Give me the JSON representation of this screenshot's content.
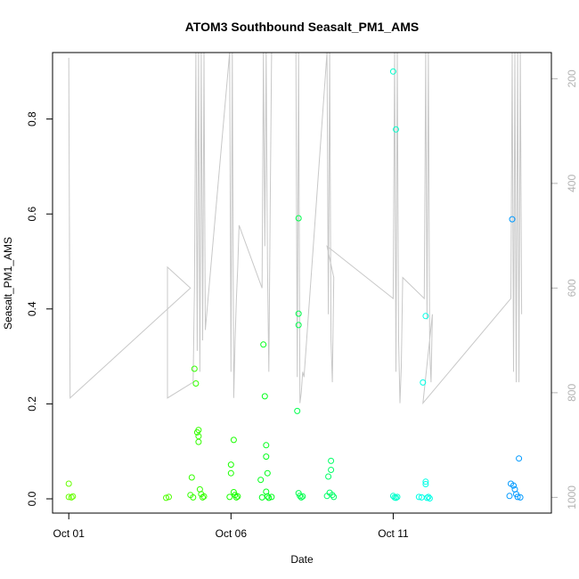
{
  "chart_data": {
    "type": "scatter",
    "title": "ATOM3 Southbound Seasalt_PM1_AMS",
    "xlabel": "Date",
    "ylabel": "Seasalt_PM1_AMS",
    "xlim": [
      "2017-09-30T12:00",
      "2017-10-15T21:00"
    ],
    "ylim": [
      -0.03,
      0.94
    ],
    "x_ticks": [
      {
        "date": "2017-10-01T00:00",
        "label": "Oct 01"
      },
      {
        "date": "2017-10-06T00:00",
        "label": "Oct 06"
      },
      {
        "date": "2017-10-11T00:00",
        "label": "Oct 11"
      }
    ],
    "y_ticks": [
      {
        "value": 0.0,
        "label": "0.0"
      },
      {
        "value": 0.2,
        "label": "0.2"
      },
      {
        "value": 0.4,
        "label": "0.4"
      },
      {
        "value": 0.6,
        "label": "0.6"
      },
      {
        "value": 0.8,
        "label": "0.8"
      }
    ],
    "secondary_axis": {
      "side": "right",
      "color": "#b3b3b3",
      "reversed": true,
      "ylim": [
        1030,
        150
      ],
      "ticks": [
        {
          "value": 200,
          "label": "200"
        },
        {
          "value": 400,
          "label": "400"
        },
        {
          "value": 600,
          "label": "600"
        },
        {
          "value": 800,
          "label": "800"
        },
        {
          "value": 1000,
          "label": "1000"
        }
      ]
    },
    "points": [
      {
        "x": "2017-10-01T00:00",
        "y": 0.032,
        "color": "#66ff00"
      },
      {
        "x": "2017-10-01T00:00",
        "y": 0.004,
        "color": "#66ff00"
      },
      {
        "x": "2017-10-01T02:00",
        "y": 0.003,
        "color": "#66ff00"
      },
      {
        "x": "2017-10-01T03:00",
        "y": 0.005,
        "color": "#66ff00"
      },
      {
        "x": "2017-10-04T00:00",
        "y": 0.002,
        "color": "#4dff00"
      },
      {
        "x": "2017-10-04T02:00",
        "y": 0.004,
        "color": "#4dff00"
      },
      {
        "x": "2017-10-04T18:00",
        "y": 0.008,
        "color": "#33ff00"
      },
      {
        "x": "2017-10-04T19:00",
        "y": 0.045,
        "color": "#33ff00"
      },
      {
        "x": "2017-10-04T20:00",
        "y": 0.003,
        "color": "#33ff00"
      },
      {
        "x": "2017-10-04T21:00",
        "y": 0.274,
        "color": "#33ff00"
      },
      {
        "x": "2017-10-04T22:00",
        "y": 0.243,
        "color": "#33ff00"
      },
      {
        "x": "2017-10-04T23:00",
        "y": 0.14,
        "color": "#33ff00"
      },
      {
        "x": "2017-10-05T00:00",
        "y": 0.145,
        "color": "#33ff00"
      },
      {
        "x": "2017-10-05T00:00",
        "y": 0.132,
        "color": "#33ff00"
      },
      {
        "x": "2017-10-05T00:00",
        "y": 0.12,
        "color": "#33ff00"
      },
      {
        "x": "2017-10-05T01:00",
        "y": 0.02,
        "color": "#33ff00"
      },
      {
        "x": "2017-10-05T02:00",
        "y": 0.01,
        "color": "#33ff00"
      },
      {
        "x": "2017-10-05T03:00",
        "y": 0.003,
        "color": "#33ff00"
      },
      {
        "x": "2017-10-05T04:00",
        "y": 0.005,
        "color": "#33ff00"
      },
      {
        "x": "2017-10-05T23:00",
        "y": 0.004,
        "color": "#1aff00"
      },
      {
        "x": "2017-10-06T00:00",
        "y": 0.072,
        "color": "#1aff00"
      },
      {
        "x": "2017-10-06T00:00",
        "y": 0.054,
        "color": "#1aff00"
      },
      {
        "x": "2017-10-06T02:00",
        "y": 0.124,
        "color": "#1aff00"
      },
      {
        "x": "2017-10-06T02:00",
        "y": 0.014,
        "color": "#1aff00"
      },
      {
        "x": "2017-10-06T03:00",
        "y": 0.008,
        "color": "#1aff00"
      },
      {
        "x": "2017-10-06T04:00",
        "y": 0.003,
        "color": "#1aff00"
      },
      {
        "x": "2017-10-06T05:00",
        "y": 0.005,
        "color": "#1aff00"
      },
      {
        "x": "2017-10-06T23:00",
        "y": 0.003,
        "color": "#00ff1a"
      },
      {
        "x": "2017-10-07T00:00",
        "y": 0.325,
        "color": "#00ff1a"
      },
      {
        "x": "2017-10-07T01:00",
        "y": 0.216,
        "color": "#00ff1a"
      },
      {
        "x": "2017-10-07T02:00",
        "y": 0.113,
        "color": "#00ff1a"
      },
      {
        "x": "2017-10-07T02:00",
        "y": 0.089,
        "color": "#00ff1a"
      },
      {
        "x": "2017-10-07T03:00",
        "y": 0.054,
        "color": "#00ff1a"
      },
      {
        "x": "2017-10-06T22:00",
        "y": 0.04,
        "color": "#00ff1a"
      },
      {
        "x": "2017-10-07T02:00",
        "y": 0.015,
        "color": "#00ff1a"
      },
      {
        "x": "2017-10-07T03:00",
        "y": 0.005,
        "color": "#00ff1a"
      },
      {
        "x": "2017-10-07T04:00",
        "y": 0.002,
        "color": "#00ff1a"
      },
      {
        "x": "2017-10-07T06:00",
        "y": 0.004,
        "color": "#00ff1a"
      },
      {
        "x": "2017-10-08T01:00",
        "y": 0.185,
        "color": "#00ff4d"
      },
      {
        "x": "2017-10-08T02:00",
        "y": 0.591,
        "color": "#00ff4d"
      },
      {
        "x": "2017-10-08T02:00",
        "y": 0.39,
        "color": "#00ff4d"
      },
      {
        "x": "2017-10-08T02:00",
        "y": 0.366,
        "color": "#00ff4d"
      },
      {
        "x": "2017-10-08T02:00",
        "y": 0.012,
        "color": "#00ff4d"
      },
      {
        "x": "2017-10-08T03:00",
        "y": 0.006,
        "color": "#00ff4d"
      },
      {
        "x": "2017-10-08T04:00",
        "y": 0.003,
        "color": "#00ff4d"
      },
      {
        "x": "2017-10-08T05:00",
        "y": 0.005,
        "color": "#00ff4d"
      },
      {
        "x": "2017-10-08T23:00",
        "y": 0.006,
        "color": "#00ff66"
      },
      {
        "x": "2017-10-09T00:00",
        "y": 0.047,
        "color": "#00ff66"
      },
      {
        "x": "2017-10-09T01:00",
        "y": 0.013,
        "color": "#00ff66"
      },
      {
        "x": "2017-10-09T02:00",
        "y": 0.08,
        "color": "#00ff66"
      },
      {
        "x": "2017-10-09T02:00",
        "y": 0.061,
        "color": "#00ff66"
      },
      {
        "x": "2017-10-09T03:00",
        "y": 0.008,
        "color": "#00ff66"
      },
      {
        "x": "2017-10-09T04:00",
        "y": 0.004,
        "color": "#00ff66"
      },
      {
        "x": "2017-10-11T00:00",
        "y": 0.9,
        "color": "#00ffcc"
      },
      {
        "x": "2017-10-11T02:00",
        "y": 0.778,
        "color": "#00ffcc"
      },
      {
        "x": "2017-10-11T00:00",
        "y": 0.006,
        "color": "#00ffcc"
      },
      {
        "x": "2017-10-11T01:00",
        "y": 0.003,
        "color": "#00ffcc"
      },
      {
        "x": "2017-10-11T02:00",
        "y": 0.002,
        "color": "#00ffcc"
      },
      {
        "x": "2017-10-11T03:00",
        "y": 0.004,
        "color": "#00ffcc"
      },
      {
        "x": "2017-10-11T19:00",
        "y": 0.004,
        "color": "#00ffe6"
      },
      {
        "x": "2017-10-11T21:00",
        "y": 0.003,
        "color": "#00ffe6"
      },
      {
        "x": "2017-10-11T22:00",
        "y": 0.245,
        "color": "#00ffe6"
      },
      {
        "x": "2017-10-12T00:00",
        "y": 0.385,
        "color": "#00ffe6"
      },
      {
        "x": "2017-10-12T00:00",
        "y": 0.036,
        "color": "#00ffe6"
      },
      {
        "x": "2017-10-12T00:00",
        "y": 0.031,
        "color": "#00ffe6"
      },
      {
        "x": "2017-10-12T01:00",
        "y": 0.002,
        "color": "#00ffe6"
      },
      {
        "x": "2017-10-12T02:00",
        "y": 0.004,
        "color": "#00ffe6"
      },
      {
        "x": "2017-10-12T03:00",
        "y": 0.001,
        "color": "#00ffe6"
      },
      {
        "x": "2017-10-14T14:00",
        "y": 0.006,
        "color": "#0099ff"
      },
      {
        "x": "2017-10-14T15:00",
        "y": 0.032,
        "color": "#0099ff"
      },
      {
        "x": "2017-10-14T16:00",
        "y": 0.589,
        "color": "#0099ff"
      },
      {
        "x": "2017-10-14T17:00",
        "y": 0.028,
        "color": "#0099ff"
      },
      {
        "x": "2017-10-14T18:00",
        "y": 0.02,
        "color": "#0099ff"
      },
      {
        "x": "2017-10-14T19:00",
        "y": 0.01,
        "color": "#0099ff"
      },
      {
        "x": "2017-10-14T20:00",
        "y": 0.004,
        "color": "#0099ff"
      },
      {
        "x": "2017-10-14T21:00",
        "y": 0.085,
        "color": "#0099ff"
      },
      {
        "x": "2017-10-14T22:00",
        "y": 0.003,
        "color": "#0099ff"
      }
    ],
    "secondary_line": {
      "color": "#c8c8c8",
      "points": [
        [
          "2017-10-01T00:00",
          160
        ],
        [
          "2017-10-01T00:00",
          160
        ],
        [
          "2017-10-01T01:00",
          810
        ],
        [
          "2017-10-04T18:00",
          600
        ],
        [
          "2017-10-04T18:00",
          600
        ],
        [
          "2017-10-04T01:00",
          560
        ],
        [
          "2017-10-04T01:00",
          810
        ],
        [
          "2017-10-04T20:00",
          780
        ],
        [
          "2017-10-04T21:00",
          600
        ],
        [
          "2017-10-04T22:00",
          150
        ],
        [
          "2017-10-04T23:00",
          720
        ],
        [
          "2017-10-05T00:00",
          150
        ],
        [
          "2017-10-05T01:00",
          760
        ],
        [
          "2017-10-05T02:00",
          150
        ],
        [
          "2017-10-05T03:00",
          700
        ],
        [
          "2017-10-05T04:00",
          150
        ],
        [
          "2017-10-05T05:00",
          680
        ],
        [
          "2017-10-05T23:00",
          150
        ],
        [
          "2017-10-06T00:00",
          760
        ],
        [
          "2017-10-06T01:00",
          150
        ],
        [
          "2017-10-06T02:00",
          810
        ],
        [
          "2017-10-06T03:00",
          700
        ],
        [
          "2017-10-06T04:00",
          620
        ],
        [
          "2017-10-06T05:00",
          560
        ],
        [
          "2017-10-06T06:00",
          480
        ],
        [
          "2017-10-06T23:00",
          600
        ],
        [
          "2017-10-07T00:00",
          150
        ],
        [
          "2017-10-07T01:00",
          520
        ],
        [
          "2017-10-07T02:00",
          150
        ],
        [
          "2017-10-07T03:00",
          560
        ],
        [
          "2017-10-07T04:00",
          760
        ],
        [
          "2017-10-07T05:00",
          450
        ],
        [
          "2017-10-07T06:00",
          150
        ],
        [
          "2017-10-08T00:00",
          150
        ],
        [
          "2017-10-08T01:00",
          770
        ],
        [
          "2017-10-08T02:00",
          150
        ],
        [
          "2017-10-08T03:00",
          820
        ],
        [
          "2017-10-08T04:00",
          800
        ],
        [
          "2017-10-08T05:00",
          760
        ],
        [
          "2017-10-08T06:00",
          770
        ],
        [
          "2017-10-08T23:00",
          150
        ],
        [
          "2017-10-09T00:00",
          650
        ],
        [
          "2017-10-09T01:00",
          150
        ],
        [
          "2017-10-09T02:00",
          700
        ],
        [
          "2017-10-09T03:00",
          780
        ],
        [
          "2017-10-09T04:00",
          580
        ],
        [
          "2017-10-08T23:00",
          520
        ],
        [
          "2017-10-11T00:00",
          620
        ],
        [
          "2017-10-11T01:00",
          150
        ],
        [
          "2017-10-11T02:00",
          760
        ],
        [
          "2017-10-11T03:00",
          150
        ],
        [
          "2017-10-11T04:00",
          700
        ],
        [
          "2017-10-11T05:00",
          820
        ],
        [
          "2017-10-11T06:00",
          750
        ],
        [
          "2017-10-11T07:00",
          580
        ],
        [
          "2017-10-11T23:00",
          620
        ],
        [
          "2017-10-12T00:00",
          150
        ],
        [
          "2017-10-12T01:00",
          660
        ],
        [
          "2017-10-12T02:00",
          150
        ],
        [
          "2017-10-12T03:00",
          720
        ],
        [
          "2017-10-12T04:00",
          780
        ],
        [
          "2017-10-12T05:00",
          650
        ],
        [
          "2017-10-11T22:00",
          820
        ],
        [
          "2017-10-14T15:00",
          620
        ],
        [
          "2017-10-14T16:00",
          150
        ],
        [
          "2017-10-14T17:00",
          760
        ],
        [
          "2017-10-14T18:00",
          150
        ],
        [
          "2017-10-14T19:00",
          780
        ],
        [
          "2017-10-14T20:00",
          150
        ],
        [
          "2017-10-14T21:00",
          780
        ],
        [
          "2017-10-14T22:00",
          150
        ],
        [
          "2017-10-14T23:00",
          650
        ]
      ]
    },
    "grid": false
  }
}
